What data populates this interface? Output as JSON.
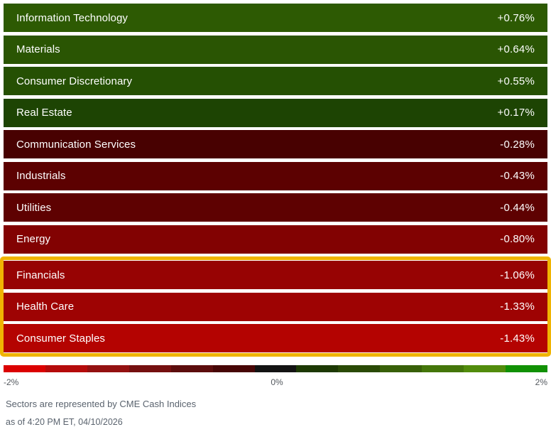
{
  "chart_data": {
    "type": "heatmap",
    "title": "",
    "categories": [
      "Information Technology",
      "Materials",
      "Consumer Discretionary",
      "Real Estate",
      "Communication Services",
      "Industrials",
      "Utilities",
      "Energy",
      "Financials",
      "Health Care",
      "Consumer Staples"
    ],
    "values": [
      0.76,
      0.64,
      0.55,
      0.17,
      -0.28,
      -0.43,
      -0.44,
      -0.8,
      -1.06,
      -1.33,
      -1.43
    ],
    "value_labels": [
      "+0.76%",
      "+0.64%",
      "+0.55%",
      "+0.17%",
      "-0.28%",
      "-0.43%",
      "-0.44%",
      "-0.80%",
      "-1.06%",
      "-1.33%",
      "-1.43%"
    ],
    "highlighted_categories": [
      "Financials",
      "Health Care",
      "Consumer Staples"
    ],
    "colorscale_range": [
      -2,
      2
    ],
    "legend_position": "bottom"
  },
  "sectors": {
    "rows": [
      {
        "label": "Information Technology",
        "value": "+0.76%",
        "color": "#2d5a03",
        "highlighted": false
      },
      {
        "label": "Materials",
        "value": "+0.64%",
        "color": "#2a5503",
        "highlighted": false
      },
      {
        "label": "Consumer Discretionary",
        "value": "+0.55%",
        "color": "#255003",
        "highlighted": false
      },
      {
        "label": "Real Estate",
        "value": "+0.17%",
        "color": "#1d4403",
        "highlighted": false
      },
      {
        "label": "Communication Services",
        "value": "-0.28%",
        "color": "#480101",
        "highlighted": false
      },
      {
        "label": "Industrials",
        "value": "-0.43%",
        "color": "#5c0101",
        "highlighted": false
      },
      {
        "label": "Utilities",
        "value": "-0.44%",
        "color": "#5e0101",
        "highlighted": false
      },
      {
        "label": "Energy",
        "value": "-0.80%",
        "color": "#820202",
        "highlighted": false
      },
      {
        "label": "Financials",
        "value": "-1.06%",
        "color": "#970303",
        "highlighted": true
      },
      {
        "label": "Health Care",
        "value": "-1.33%",
        "color": "#9e0303",
        "highlighted": true
      },
      {
        "label": "Consumer Staples",
        "value": "-1.43%",
        "color": "#b40301",
        "highlighted": true
      }
    ],
    "highlight_border_color": "#f0b402"
  },
  "scale": {
    "segment_colors": [
      "#db0101",
      "#b50b0b",
      "#941111",
      "#751010",
      "#5c0d0d",
      "#470606",
      "#131313",
      "#1d3904",
      "#2a4a06",
      "#386008",
      "#44760a",
      "#528c0c",
      "#119104"
    ],
    "labels": {
      "min": "-2%",
      "mid": "0%",
      "max": "2%"
    }
  },
  "footer": {
    "line1": "Sectors are represented by CME Cash Indices",
    "line2": "as of 4:20 PM ET, 04/10/2026"
  }
}
